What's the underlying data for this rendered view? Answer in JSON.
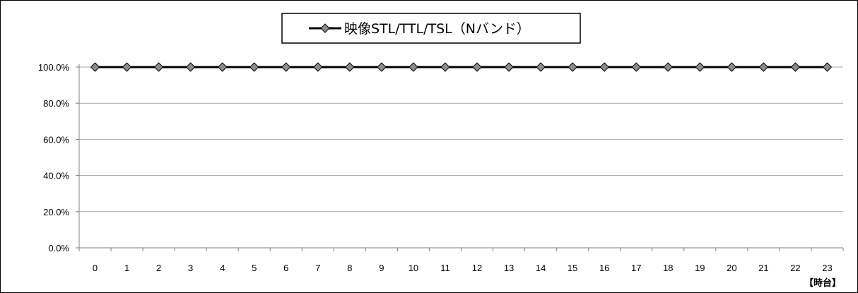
{
  "chart_data": {
    "type": "line",
    "title": "",
    "xlabel": "【時台】",
    "ylabel": "",
    "categories": [
      "0",
      "1",
      "2",
      "3",
      "4",
      "5",
      "6",
      "7",
      "8",
      "9",
      "10",
      "11",
      "12",
      "13",
      "14",
      "15",
      "16",
      "17",
      "18",
      "19",
      "20",
      "21",
      "22",
      "23"
    ],
    "series": [
      {
        "name": "映像STL/TTL/TSL（Nバンド）",
        "values": [
          100,
          100,
          100,
          100,
          100,
          100,
          100,
          100,
          100,
          100,
          100,
          100,
          100,
          100,
          100,
          100,
          100,
          100,
          100,
          100,
          100,
          100,
          100,
          100
        ]
      }
    ],
    "ylim": [
      0,
      100
    ],
    "yticks": [
      "0.0%",
      "20.0%",
      "40.0%",
      "60.0%",
      "80.0%",
      "100.0%"
    ],
    "grid": "horizontal",
    "legend_position": "top-center",
    "marker": "diamond",
    "colors": {
      "line": "#000000",
      "marker_fill": "#8c8c8c",
      "grid": "#a6a6a6",
      "axis": "#808080"
    }
  }
}
